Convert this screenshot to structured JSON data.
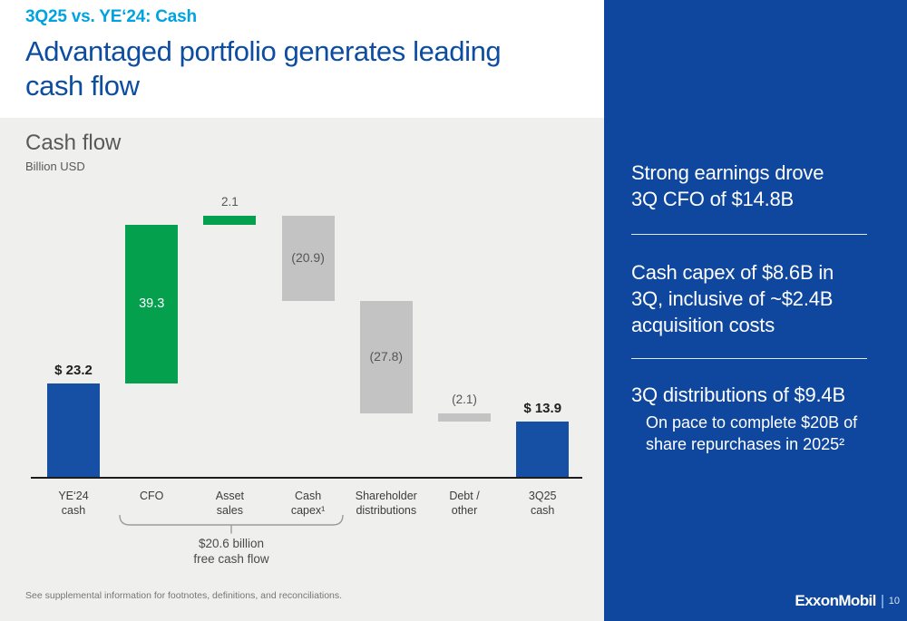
{
  "slide": {
    "kicker": "3Q25 vs. YE‘24: Cash",
    "title": "Advantaged portfolio generates leading\ncash flow",
    "footnote": "See supplemental information for footnotes, definitions, and reconciliations.",
    "brand": "ExxonMobil",
    "page_number": "10"
  },
  "chart": {
    "title": "Cash flow",
    "unit_label": "Billion USD"
  },
  "chart_data": {
    "type": "bar",
    "subtype": "waterfall",
    "title": "Cash flow",
    "ylabel": "Billion USD",
    "value_axis_visible": false,
    "grid": false,
    "categories": [
      "YE‘24 cash",
      "CFO",
      "Asset sales",
      "Cash capex¹",
      "Shareholder distributions",
      "Debt / other",
      "3Q25 cash"
    ],
    "bars": [
      {
        "id": "ye24-cash",
        "label": "YE‘24\ncash",
        "kind": "total",
        "value": 23.2,
        "display": "$ 23.2",
        "label_position": "above"
      },
      {
        "id": "cfo",
        "label": "CFO",
        "kind": "delta",
        "value": 39.3,
        "display": "39.3",
        "label_position": "inside"
      },
      {
        "id": "asset-sales",
        "label": "Asset\nsales",
        "kind": "delta",
        "value": 2.1,
        "display": "2.1",
        "label_position": "above"
      },
      {
        "id": "cash-capex",
        "label": "Cash\ncapex¹",
        "kind": "delta",
        "value": -20.9,
        "display": "(20.9)",
        "label_position": "inside"
      },
      {
        "id": "shareholder-distributions",
        "label": "Shareholder\ndistributions",
        "kind": "delta",
        "value": -27.8,
        "display": "(27.8)",
        "label_position": "inside"
      },
      {
        "id": "debt-other",
        "label": "Debt /\nother",
        "kind": "delta",
        "value": -2.1,
        "display": "(2.1)",
        "label_position": "above"
      },
      {
        "id": "3q25-cash",
        "label": "3Q25\ncash",
        "kind": "total",
        "value": 13.9,
        "display": "$ 13.9",
        "label_position": "above"
      }
    ],
    "bracket": {
      "from_category": "CFO",
      "to_category": "Cash capex¹",
      "label": "$20.6 billion\nfree cash flow"
    }
  },
  "sidebar": {
    "callout_1": "Strong earnings drove\n3Q CFO of $14.8B",
    "callout_2": "Cash capex of $8.6B in\n3Q, inclusive of ~$2.4B\nacquisition costs",
    "callout_3_heading": "3Q distributions of $9.4B",
    "callout_3_subtext": "On pace to complete $20B of\nshare repurchases in 2025²"
  },
  "colors": {
    "kicker": "#00a3e0",
    "title": "#0c4da2",
    "total_bar": "#1550a4",
    "increase_bar": "#05a04e",
    "decrease_bar": "#c3c3c3",
    "sidebar_bg": "#0f479e",
    "chart_bg": "#efefee"
  }
}
